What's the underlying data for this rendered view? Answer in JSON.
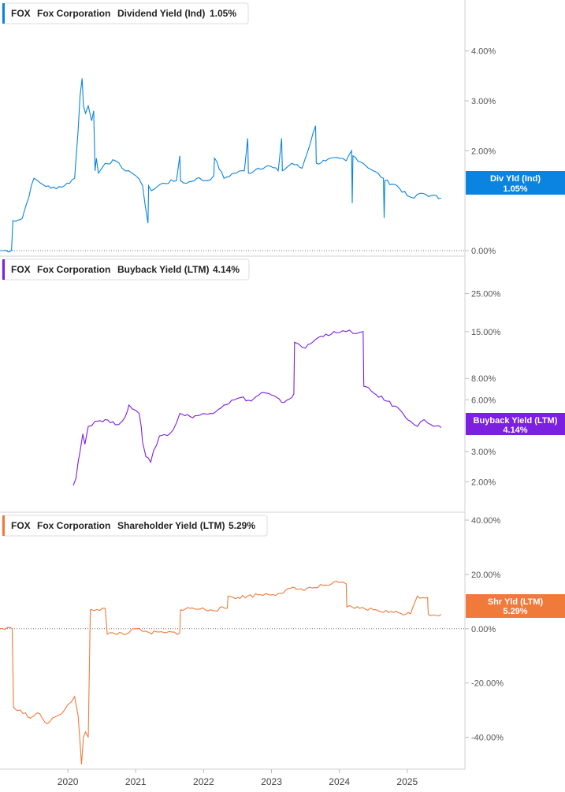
{
  "colors": {
    "dividend": "#0a84e0",
    "buyback": "#7b1fe0",
    "shareholder": "#f07a3a"
  },
  "chart_data": [
    {
      "type": "line",
      "ticker": "FOX",
      "company": "Fox Corporation",
      "title": "Dividend Yield (Ind)",
      "current_value": "1.05%",
      "badge": {
        "line1": "Div Yld (Ind)",
        "line2": "1.05%"
      },
      "y_ticks": [
        "4.00%",
        "3.00%",
        "2.00%",
        "0.00%"
      ],
      "ylim": [
        0,
        4.8
      ],
      "zero_line": 0,
      "x": [
        2019.0,
        2019.17,
        2019.19,
        2019.3,
        2019.33,
        2019.35,
        2019.5,
        2019.6,
        2019.75,
        2019.95,
        2020.1,
        2020.15,
        2020.18,
        2020.21,
        2020.23,
        2020.26,
        2020.3,
        2020.35,
        2020.38,
        2020.4,
        2020.42,
        2020.45,
        2020.55,
        2020.7,
        2020.8,
        2020.9,
        2021.0,
        2021.1,
        2021.18,
        2021.19,
        2021.23,
        2021.4,
        2021.6,
        2021.65,
        2021.66,
        2021.75,
        2021.9,
        2022.05,
        2022.15,
        2022.16,
        2022.3,
        2022.45,
        2022.6,
        2022.65,
        2022.66,
        2022.8,
        2022.95,
        2023.1,
        2023.15,
        2023.16,
        2023.3,
        2023.45,
        2023.65,
        2023.66,
        2023.8,
        2024.0,
        2024.1,
        2024.18,
        2024.19,
        2024.2,
        2024.35,
        2024.5,
        2024.65,
        2024.66,
        2024.67,
        2024.85,
        2025.0,
        2025.1,
        2025.2,
        2025.35,
        2025.5
      ],
      "values": [
        0.0,
        0.0,
        0.6,
        0.62,
        0.65,
        0.75,
        1.45,
        1.35,
        1.25,
        1.3,
        1.45,
        2.4,
        3.1,
        3.45,
        2.9,
        2.75,
        2.9,
        2.6,
        2.8,
        1.6,
        1.85,
        1.55,
        1.75,
        1.8,
        1.65,
        1.6,
        1.5,
        1.3,
        0.55,
        1.3,
        1.2,
        1.35,
        1.4,
        1.9,
        1.4,
        1.35,
        1.45,
        1.4,
        1.5,
        1.85,
        1.45,
        1.55,
        1.6,
        2.25,
        1.55,
        1.65,
        1.7,
        1.6,
        2.25,
        1.6,
        1.75,
        1.65,
        2.5,
        1.75,
        1.8,
        1.85,
        1.8,
        2.0,
        0.95,
        1.9,
        1.75,
        1.6,
        1.45,
        0.65,
        1.4,
        1.3,
        1.1,
        1.05,
        1.15,
        1.1,
        1.05
      ]
    },
    {
      "type": "line",
      "ticker": "FOX",
      "company": "Fox Corporation",
      "title": "Buyback Yield (LTM)",
      "current_value": "4.14%",
      "badge": {
        "line1": "Buyback Yield (LTM)",
        "line2": "4.14%"
      },
      "y_ticks": [
        "25.00%",
        "15.00%",
        "8.00%",
        "6.00%",
        "3.00%",
        "2.00%"
      ],
      "y_tick_values": [
        25,
        15,
        8,
        6,
        3,
        2
      ],
      "scale": "log",
      "ylim": [
        1.4,
        36
      ],
      "x": [
        2020.08,
        2020.12,
        2020.15,
        2020.18,
        2020.22,
        2020.25,
        2020.3,
        2020.4,
        2020.55,
        2020.7,
        2020.8,
        2020.88,
        2020.9,
        2021.0,
        2021.05,
        2021.08,
        2021.1,
        2021.15,
        2021.22,
        2021.35,
        2021.5,
        2021.55,
        2021.6,
        2021.65,
        2021.8,
        2021.95,
        2022.1,
        2022.3,
        2022.45,
        2022.55,
        2022.7,
        2022.85,
        2023.0,
        2023.15,
        2023.3,
        2023.33,
        2023.34,
        2023.4,
        2023.5,
        2023.65,
        2023.8,
        2024.0,
        2024.1,
        2024.15,
        2024.25,
        2024.35,
        2024.36,
        2024.5,
        2024.7,
        2024.9,
        2025.05,
        2025.15,
        2025.25,
        2025.35,
        2025.5
      ],
      "values": [
        1.9,
        2.1,
        2.6,
        3.0,
        3.8,
        3.3,
        4.2,
        4.5,
        4.6,
        4.3,
        4.5,
        5.2,
        5.6,
        5.2,
        5.0,
        4.2,
        3.4,
        2.8,
        2.6,
        3.7,
        3.8,
        4.0,
        4.4,
        5.0,
        4.8,
        4.9,
        5.0,
        5.6,
        6.0,
        6.2,
        5.9,
        6.6,
        6.4,
        5.8,
        6.2,
        6.5,
        13.0,
        12.7,
        12.0,
        13.5,
        14.5,
        14.8,
        15.0,
        15.3,
        14.6,
        15.0,
        7.2,
        6.6,
        5.9,
        5.2,
        4.5,
        4.2,
        4.6,
        4.3,
        4.14
      ]
    },
    {
      "type": "line",
      "ticker": "FOX",
      "company": "Fox Corporation",
      "title": "Shareholder Yield (LTM)",
      "current_value": "5.29%",
      "badge": {
        "line1": "Shr Yld (LTM)",
        "line2": "5.29%"
      },
      "y_ticks": [
        "40.00%",
        "20.00%",
        "0.00%",
        "-20.00%",
        "-40.00%"
      ],
      "y_tick_values": [
        40,
        20,
        0,
        -20,
        -40
      ],
      "ylim": [
        -50,
        40
      ],
      "zero_line": 0,
      "x": [
        2019.0,
        2019.18,
        2019.2,
        2019.3,
        2019.45,
        2019.55,
        2019.7,
        2019.85,
        2019.95,
        2020.0,
        2020.05,
        2020.1,
        2020.15,
        2020.18,
        2020.2,
        2020.23,
        2020.26,
        2020.3,
        2020.33,
        2020.35,
        2020.55,
        2020.58,
        2020.9,
        2021.0,
        2021.1,
        2021.2,
        2021.45,
        2021.65,
        2021.66,
        2021.8,
        2022.1,
        2022.35,
        2022.36,
        2022.5,
        2022.8,
        2023.1,
        2023.35,
        2023.36,
        2023.6,
        2023.8,
        2024.0,
        2024.1,
        2024.11,
        2024.3,
        2024.5,
        2024.8,
        2025.05,
        2025.15,
        2025.3,
        2025.31,
        2025.5
      ],
      "values": [
        0,
        0,
        -29,
        -30,
        -33,
        -31,
        -35,
        -32,
        -30,
        -28,
        -27,
        -25,
        -32,
        -42,
        -50,
        -40,
        -38,
        -40,
        7,
        7,
        7.5,
        -2,
        -1.5,
        0,
        -1,
        -1.5,
        -1.5,
        -1.5,
        7,
        7.5,
        7.0,
        7.5,
        12,
        11.5,
        12.5,
        13,
        15,
        14.5,
        15,
        16,
        17,
        16.5,
        8,
        7.5,
        7.0,
        6.0,
        5.5,
        12,
        11.5,
        5.29,
        5.29
      ]
    }
  ],
  "x_axis": {
    "ticks": [
      "2020",
      "2021",
      "2022",
      "2023",
      "2024",
      "2025"
    ],
    "tick_values": [
      2020,
      2021,
      2022,
      2023,
      2024,
      2025
    ],
    "range": [
      2019.0,
      2025.85
    ]
  }
}
